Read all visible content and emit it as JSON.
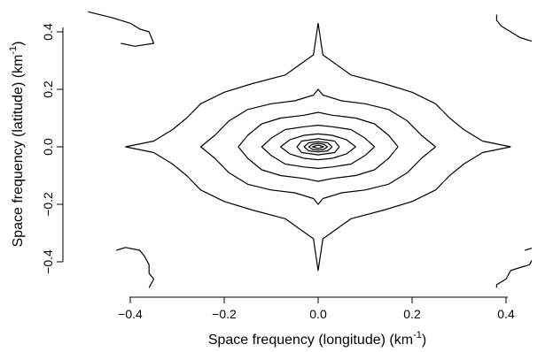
{
  "chart_data": {
    "type": "contour",
    "xlabel": "Space frequency (longitude) (km",
    "xlabel_sup": "-1",
    "xlabel_end": ")",
    "ylabel": "Space frequency (latitude) (km",
    "ylabel_sup": "-1",
    "ylabel_end": ")",
    "xlim": [
      -0.4,
      0.4
    ],
    "ylim": [
      -0.45,
      0.45
    ],
    "x_ticks": [
      -0.4,
      -0.2,
      0.0,
      0.2,
      0.4
    ],
    "x_tick_labels": [
      "−0.4",
      "−0.2",
      "0.0",
      "0.2",
      "0.4"
    ],
    "y_ticks": [
      -0.4,
      -0.2,
      0.0,
      0.2,
      0.4
    ],
    "y_tick_labels": [
      "−0.4",
      "−0.2",
      "0.0",
      "0.2",
      "0.4"
    ],
    "grid": false,
    "line_color": "#000000",
    "contours": [
      {
        "level": 1,
        "points": [
          [
            0.41,
            0.0
          ],
          [
            0.35,
            0.02
          ],
          [
            0.31,
            0.06
          ],
          [
            0.28,
            0.1
          ],
          [
            0.25,
            0.15
          ],
          [
            0.2,
            0.19
          ],
          [
            0.14,
            0.22
          ],
          [
            0.07,
            0.25
          ],
          [
            0.01,
            0.32
          ],
          [
            0.0,
            0.43
          ],
          [
            -0.01,
            0.32
          ],
          [
            -0.07,
            0.25
          ],
          [
            -0.14,
            0.22
          ],
          [
            -0.2,
            0.19
          ],
          [
            -0.25,
            0.15
          ],
          [
            -0.28,
            0.1
          ],
          [
            -0.31,
            0.06
          ],
          [
            -0.35,
            0.02
          ],
          [
            -0.41,
            0.0
          ],
          [
            -0.35,
            -0.02
          ],
          [
            -0.31,
            -0.06
          ],
          [
            -0.28,
            -0.1
          ],
          [
            -0.25,
            -0.15
          ],
          [
            -0.2,
            -0.19
          ],
          [
            -0.14,
            -0.22
          ],
          [
            -0.07,
            -0.25
          ],
          [
            -0.01,
            -0.32
          ],
          [
            0.0,
            -0.43
          ],
          [
            0.01,
            -0.32
          ],
          [
            0.07,
            -0.25
          ],
          [
            0.14,
            -0.22
          ],
          [
            0.2,
            -0.19
          ],
          [
            0.25,
            -0.15
          ],
          [
            0.28,
            -0.1
          ],
          [
            0.31,
            -0.06
          ],
          [
            0.35,
            -0.02
          ],
          [
            0.41,
            0.0
          ]
        ]
      },
      {
        "level": 2,
        "points": [
          [
            0.25,
            0.0
          ],
          [
            0.22,
            0.04
          ],
          [
            0.19,
            0.09
          ],
          [
            0.15,
            0.13
          ],
          [
            0.1,
            0.15
          ],
          [
            0.05,
            0.16
          ],
          [
            0.01,
            0.18
          ],
          [
            0.0,
            0.2
          ],
          [
            -0.01,
            0.18
          ],
          [
            -0.05,
            0.16
          ],
          [
            -0.1,
            0.15
          ],
          [
            -0.15,
            0.13
          ],
          [
            -0.19,
            0.09
          ],
          [
            -0.22,
            0.04
          ],
          [
            -0.25,
            0.0
          ],
          [
            -0.22,
            -0.04
          ],
          [
            -0.19,
            -0.09
          ],
          [
            -0.15,
            -0.13
          ],
          [
            -0.1,
            -0.15
          ],
          [
            -0.05,
            -0.16
          ],
          [
            -0.01,
            -0.18
          ],
          [
            0.0,
            -0.2
          ],
          [
            0.01,
            -0.18
          ],
          [
            0.05,
            -0.16
          ],
          [
            0.1,
            -0.15
          ],
          [
            0.15,
            -0.13
          ],
          [
            0.19,
            -0.09
          ],
          [
            0.22,
            -0.04
          ],
          [
            0.25,
            0.0
          ]
        ]
      },
      {
        "level": 3,
        "points": [
          [
            0.17,
            0.0
          ],
          [
            0.15,
            0.04
          ],
          [
            0.12,
            0.08
          ],
          [
            0.08,
            0.1
          ],
          [
            0.03,
            0.11
          ],
          [
            0.0,
            0.12
          ],
          [
            -0.03,
            0.11
          ],
          [
            -0.08,
            0.1
          ],
          [
            -0.12,
            0.08
          ],
          [
            -0.15,
            0.04
          ],
          [
            -0.17,
            0.0
          ],
          [
            -0.15,
            -0.04
          ],
          [
            -0.12,
            -0.08
          ],
          [
            -0.08,
            -0.1
          ],
          [
            -0.03,
            -0.11
          ],
          [
            0.0,
            -0.12
          ],
          [
            0.03,
            -0.11
          ],
          [
            0.08,
            -0.1
          ],
          [
            0.12,
            -0.08
          ],
          [
            0.15,
            -0.04
          ],
          [
            0.17,
            0.0
          ]
        ]
      },
      {
        "level": 4,
        "points": [
          [
            0.12,
            0.0
          ],
          [
            0.1,
            0.03
          ],
          [
            0.07,
            0.06
          ],
          [
            0.03,
            0.07
          ],
          [
            0.0,
            0.075
          ],
          [
            -0.03,
            0.07
          ],
          [
            -0.07,
            0.06
          ],
          [
            -0.1,
            0.03
          ],
          [
            -0.12,
            0.0
          ],
          [
            -0.1,
            -0.03
          ],
          [
            -0.07,
            -0.06
          ],
          [
            -0.03,
            -0.07
          ],
          [
            0.0,
            -0.075
          ],
          [
            0.03,
            -0.07
          ],
          [
            0.07,
            -0.06
          ],
          [
            0.1,
            -0.03
          ],
          [
            0.12,
            0.0
          ]
        ]
      },
      {
        "level": 5,
        "points": [
          [
            0.08,
            0.0
          ],
          [
            0.06,
            0.025
          ],
          [
            0.03,
            0.04
          ],
          [
            0.0,
            0.045
          ],
          [
            -0.03,
            0.04
          ],
          [
            -0.06,
            0.025
          ],
          [
            -0.08,
            0.0
          ],
          [
            -0.06,
            -0.025
          ],
          [
            -0.03,
            -0.04
          ],
          [
            0.0,
            -0.045
          ],
          [
            0.03,
            -0.04
          ],
          [
            0.06,
            -0.025
          ],
          [
            0.08,
            0.0
          ]
        ]
      },
      {
        "level": 6,
        "points": [
          [
            0.045,
            0.0
          ],
          [
            0.035,
            0.02
          ],
          [
            0.0,
            0.028
          ],
          [
            -0.035,
            0.02
          ],
          [
            -0.045,
            0.0
          ],
          [
            -0.035,
            -0.02
          ],
          [
            0.0,
            -0.028
          ],
          [
            0.035,
            -0.02
          ],
          [
            0.045,
            0.0
          ]
        ]
      },
      {
        "level": 7,
        "points": [
          [
            0.03,
            0.0
          ],
          [
            0.02,
            0.014
          ],
          [
            0.0,
            0.018
          ],
          [
            -0.02,
            0.014
          ],
          [
            -0.03,
            0.0
          ],
          [
            -0.02,
            -0.014
          ],
          [
            0.0,
            -0.018
          ],
          [
            0.02,
            -0.014
          ],
          [
            0.03,
            0.0
          ]
        ]
      },
      {
        "level": 8,
        "points": [
          [
            0.02,
            0.0
          ],
          [
            0.012,
            0.009
          ],
          [
            0.0,
            0.012
          ],
          [
            -0.012,
            0.009
          ],
          [
            -0.02,
            0.0
          ],
          [
            -0.012,
            -0.009
          ],
          [
            0.0,
            -0.012
          ],
          [
            0.012,
            -0.009
          ],
          [
            0.02,
            0.0
          ]
        ]
      },
      {
        "level": 9,
        "points": [
          [
            0.012,
            0.0
          ],
          [
            0.0,
            0.006
          ],
          [
            -0.012,
            0.0
          ],
          [
            0.0,
            -0.006
          ],
          [
            0.012,
            0.0
          ]
        ]
      },
      {
        "level": 1,
        "points": [
          [
            -0.49,
            0.47
          ],
          [
            -0.44,
            0.45
          ],
          [
            -0.4,
            0.43
          ],
          [
            -0.38,
            0.41
          ],
          [
            -0.36,
            0.4
          ],
          [
            -0.35,
            0.36
          ],
          [
            -0.39,
            0.35
          ],
          [
            -0.42,
            0.36
          ]
        ]
      },
      {
        "level": 1,
        "points": [
          [
            0.38,
            0.46
          ],
          [
            0.38,
            0.44
          ],
          [
            0.39,
            0.42
          ],
          [
            0.41,
            0.4
          ],
          [
            0.43,
            0.38
          ],
          [
            0.45,
            0.37
          ],
          [
            0.47,
            0.36
          ],
          [
            0.49,
            0.36
          ],
          [
            0.51,
            0.35
          ]
        ]
      },
      {
        "level": 1,
        "points": [
          [
            -0.43,
            -0.36
          ],
          [
            -0.41,
            -0.35
          ],
          [
            -0.38,
            -0.36
          ],
          [
            -0.37,
            -0.38
          ],
          [
            -0.36,
            -0.41
          ],
          [
            -0.36,
            -0.44
          ],
          [
            -0.35,
            -0.46
          ],
          [
            -0.36,
            -0.49
          ]
        ]
      },
      {
        "level": 1,
        "points": [
          [
            0.44,
            -0.36
          ],
          [
            0.46,
            -0.35
          ],
          [
            0.47,
            -0.36
          ],
          [
            0.46,
            -0.38
          ],
          [
            0.45,
            -0.41
          ],
          [
            0.43,
            -0.42
          ],
          [
            0.41,
            -0.43
          ],
          [
            0.4,
            -0.46
          ],
          [
            0.38,
            -0.48
          ],
          [
            0.38,
            -0.49
          ]
        ]
      }
    ]
  }
}
